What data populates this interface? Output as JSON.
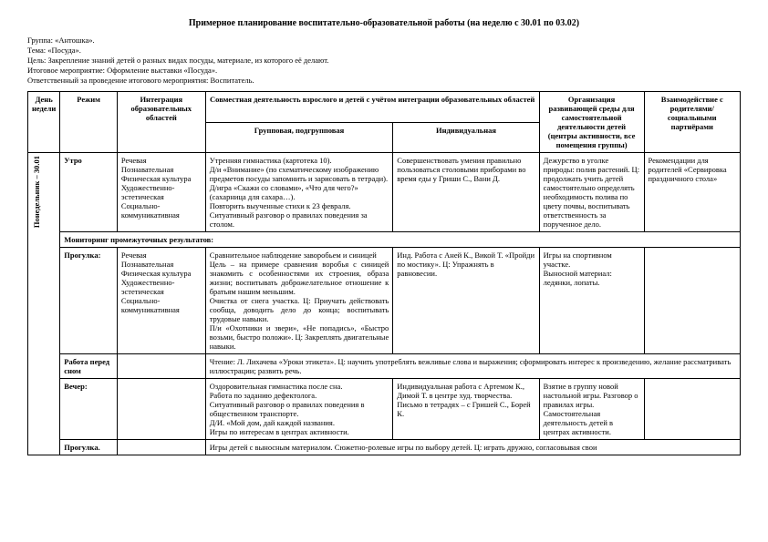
{
  "title": "Примерное планирование воспитательно-образовательной работы (на неделю с 30.01 по 03.02)",
  "meta": {
    "group": "Группа: «Антошка».",
    "theme": "Тема: «Посуда».",
    "goal": "Цель: Закрепление знаний детей о разных видах посуды, материале, из которого её делают.",
    "event": "Итоговое мероприятие: Оформление выставки «Посуда».",
    "resp": "Ответственный за проведение итогового мероприятия: Воспитатель."
  },
  "head": {
    "day": "День недели",
    "regime": "Режим",
    "integration": "Интеграция образовательных областей",
    "joint": "Совместная деятельность взрослого и детей с учётом интеграции образовательных областей",
    "group": "Групповая, подгрупповая",
    "individual": "Индивидуальная",
    "env": "Организация развивающей среды для самостоятельной деятельности детей (центры активности, все помещения группы)",
    "parents": "Взаимодействие с родителями/ социальными партнёрами"
  },
  "dayLabel": "Понедельник – 30.01",
  "rows": {
    "morning": {
      "regime": "Утро",
      "integration": "Речевая\nПознавательная\nФизическая культура\nХудожественно-эстетическая\nСоциально-коммуникативная",
      "group": "Утренняя гимнастика (картотека 10).\nД/и «Внимание» (по схематическому изображению предметов посуды запомнить и зарисовать в тетради).\nД/игра «Скажи со словами», «Что для чего?» (сахарница для сахара…).\nПовторить выученные стихи к 23 февраля.\nСитуативный разговор о правилах поведения за столом.",
      "ind": "Совершенствовать умения правильно пользоваться столовыми приборами во время еды у Гриши С., Вани Д.",
      "env": "Дежурство в уголке природы: полив растений. Ц: продолжать учить детей самостоятельно определять необходимость полива по цвету почвы, воспитывать ответственность за порученное дело.",
      "parents": "Рекомендации для родителей «Сервировка праздничного стола»"
    },
    "monitor": "Мониторинг промежуточных результатов:",
    "walk1": {
      "regime": "Прогулка:",
      "integration": "Речевая\nПознавательная\nФизическая культура\nХудожественно-эстетическая\nСоциально-коммуникативная",
      "group": "Сравнительное наблюдение заворобьем и синицей\nЦель – на примере сравнения воробья с синицей знакомить с особенностями их строения, образа жизни; воспитывать доброжелательное отношение к братьям нашим меньшим.\nОчистка от снега участка. Ц: Приучать действовать сообща, доводить дело до конца; воспитывать трудовые навыки.\nП/и «Охотники и звери», «Не попадись», «Быстро возьми, быстро положи». Ц: Закреплять двигательные навыки.",
      "ind": "Инд. Работа с Аней К., Викой Т. «Пройди по мостику». Ц: Упражнять в равновесии.",
      "env": "Игры на спортивном участке.\nВыносной материал: ледянки, лопаты."
    },
    "before": {
      "regime": "Работа перед сном",
      "text": "Чтение: Л. Лихачева «Уроки этикета». Ц: научить употреблять вежливые слова и выражения; сформировать интерес к произведению, желание рассматривать иллюстрации; развить речь."
    },
    "evening": {
      "regime": "Вечер:",
      "group": "Оздоровительная гимнастика после сна.\nРабота по заданию дефектолога.\nСитуативный разговор о правилах поведения в общественном транспорте.\nД/И. «Мой дом, дай каждой названия.\nИгры по интересам в центрах активности.",
      "ind": "Индивидуальная работа с Артемом К., Димой Т. в центре худ. творчества.\nПисьмо в тетрадях – с Гришей С., Борей К.",
      "env": "Взятие в группу новой настольной игры. Разговор о правилах игры. Самостоятельная деятельность детей в центрах активности."
    },
    "walk2": {
      "regime": "Прогулка.",
      "text": "Игры детей с выносным материалом.   Сюжетно-ролевые игры по выбору детей.  Ц: играть дружно, согласовывая свои"
    }
  }
}
